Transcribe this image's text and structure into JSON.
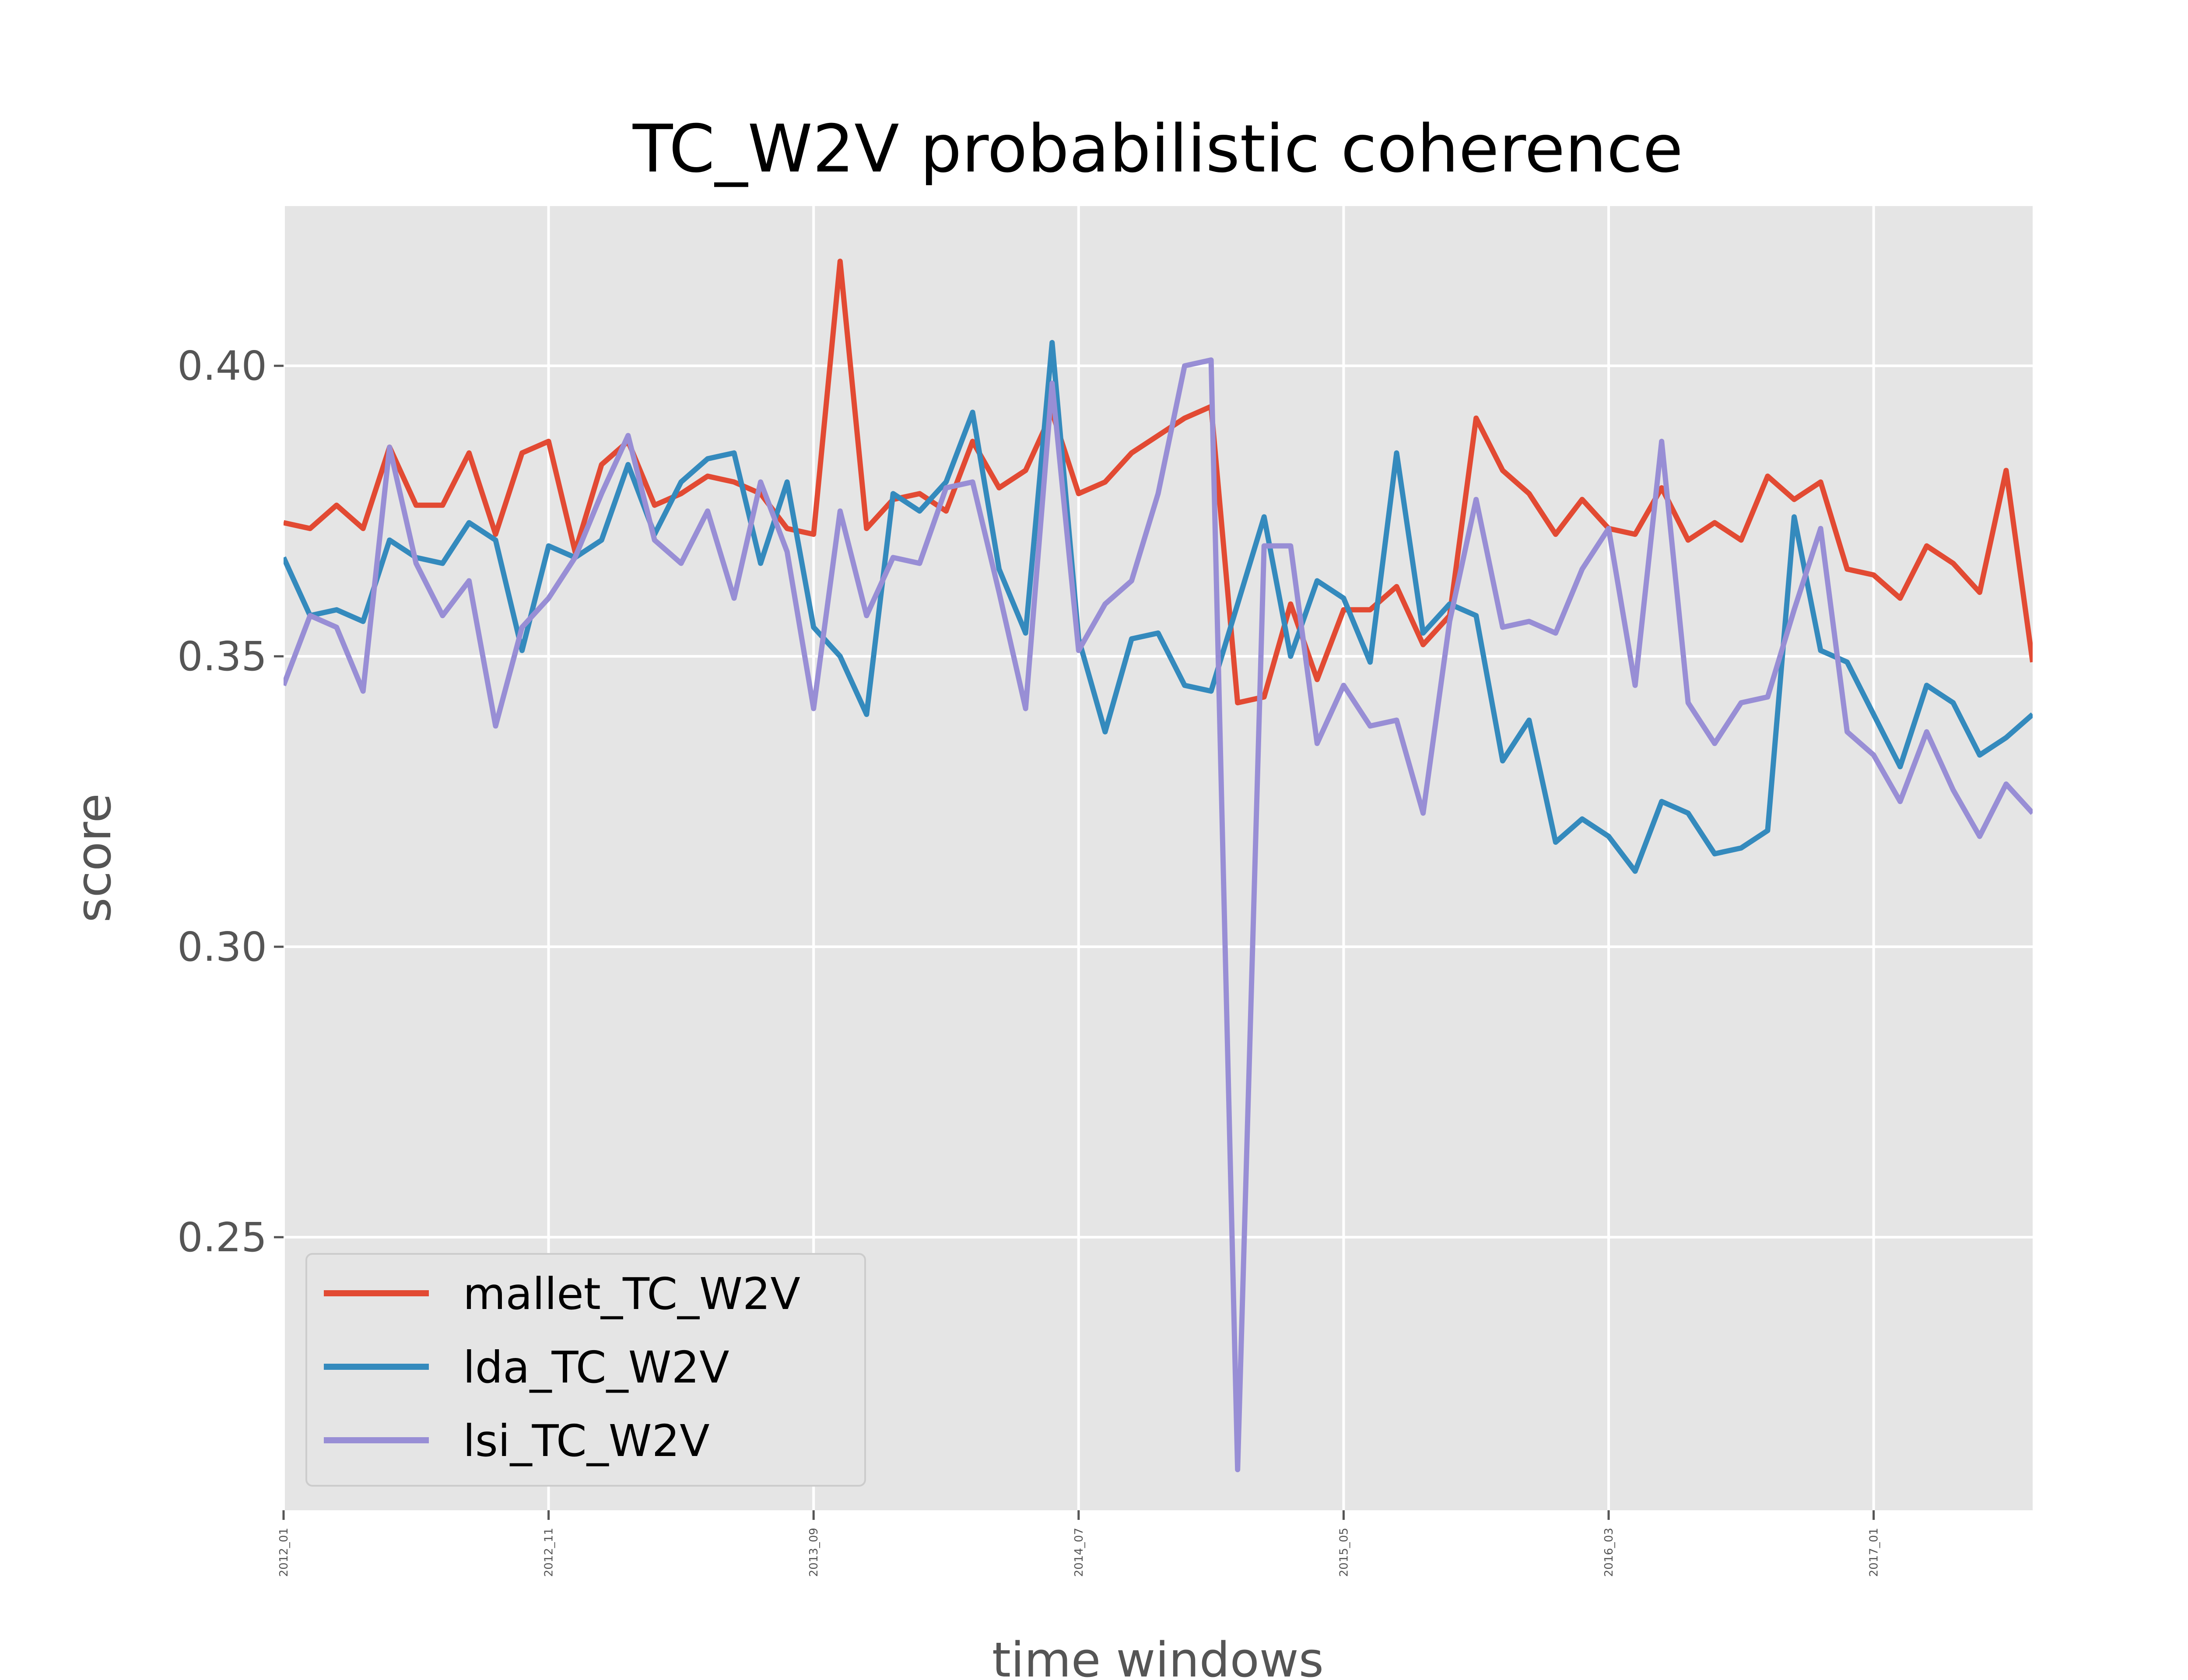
{
  "chart_data": {
    "type": "line",
    "title": "TC_W2V probabilistic coherence",
    "xlabel": "time windows",
    "ylabel": "score",
    "ylim": [
      0.203,
      0.4275
    ],
    "yticks": [
      0.25,
      0.3,
      0.35,
      0.4
    ],
    "ytick_labels": [
      "0.25",
      "0.30",
      "0.35",
      "0.40"
    ],
    "xtick_labels": [
      "2012_01",
      "2012_11",
      "2013_09",
      "2014_07",
      "2015_05",
      "2016_03",
      "2017_01"
    ],
    "xtick_indices": [
      0,
      10,
      20,
      30,
      40,
      50,
      60
    ],
    "n_points": 67,
    "grid": true,
    "legend_position": "lower-left",
    "colors": {
      "background": "#e5e5e5",
      "grid": "#ffffff",
      "mallet": "#e24a33",
      "lda": "#348abd",
      "lsi": "#988ed5"
    },
    "series": [
      {
        "name": "mallet_TC_W2V",
        "values": [
          0.373,
          0.372,
          0.376,
          0.372,
          0.386,
          0.376,
          0.376,
          0.385,
          0.371,
          0.385,
          0.387,
          0.368,
          0.383,
          0.387,
          0.376,
          0.378,
          0.381,
          0.38,
          0.378,
          0.372,
          0.371,
          0.418,
          0.372,
          0.377,
          0.378,
          0.375,
          0.387,
          0.379,
          0.382,
          0.392,
          0.378,
          0.38,
          0.385,
          0.388,
          0.391,
          0.393,
          0.342,
          0.343,
          0.359,
          0.346,
          0.358,
          0.358,
          0.362,
          0.352,
          0.357,
          0.391,
          0.382,
          0.378,
          0.371,
          0.377,
          0.372,
          0.371,
          0.379,
          0.37,
          0.373,
          0.37,
          0.381,
          0.377,
          0.38,
          0.365,
          0.364,
          0.36,
          0.369,
          0.366,
          0.361,
          0.382,
          0.349
        ]
      },
      {
        "name": "lda_TC_W2V",
        "values": [
          0.367,
          0.357,
          0.358,
          0.356,
          0.37,
          0.367,
          0.366,
          0.373,
          0.37,
          0.351,
          0.369,
          0.367,
          0.37,
          0.383,
          0.371,
          0.38,
          0.384,
          0.385,
          0.366,
          0.38,
          0.355,
          0.35,
          0.34,
          0.378,
          0.375,
          0.38,
          0.392,
          0.365,
          0.354,
          0.404,
          0.353,
          0.337,
          0.353,
          0.354,
          0.345,
          0.344,
          0.359,
          0.374,
          0.35,
          0.363,
          0.36,
          0.349,
          0.385,
          0.354,
          0.359,
          0.357,
          0.332,
          0.339,
          0.318,
          0.322,
          0.319,
          0.313,
          0.325,
          0.323,
          0.316,
          0.317,
          0.32,
          0.374,
          0.351,
          0.349,
          0.34,
          0.331,
          0.345,
          0.342,
          0.333,
          0.336,
          0.34
        ]
      },
      {
        "name": "lsi_TC_W2V",
        "values": [
          0.345,
          0.357,
          0.355,
          0.344,
          0.386,
          0.366,
          0.357,
          0.363,
          0.338,
          0.355,
          0.36,
          0.367,
          0.378,
          0.388,
          0.37,
          0.366,
          0.375,
          0.36,
          0.38,
          0.368,
          0.341,
          0.375,
          0.357,
          0.367,
          0.366,
          0.379,
          0.38,
          0.361,
          0.341,
          0.397,
          0.351,
          0.359,
          0.363,
          0.378,
          0.4,
          0.401,
          0.21,
          0.369,
          0.369,
          0.335,
          0.345,
          0.338,
          0.339,
          0.323,
          0.356,
          0.377,
          0.355,
          0.356,
          0.354,
          0.365,
          0.372,
          0.345,
          0.387,
          0.342,
          0.335,
          0.342,
          0.343,
          0.358,
          0.372,
          0.337,
          0.333,
          0.325,
          0.337,
          0.327,
          0.319,
          0.328,
          0.323
        ]
      }
    ]
  }
}
